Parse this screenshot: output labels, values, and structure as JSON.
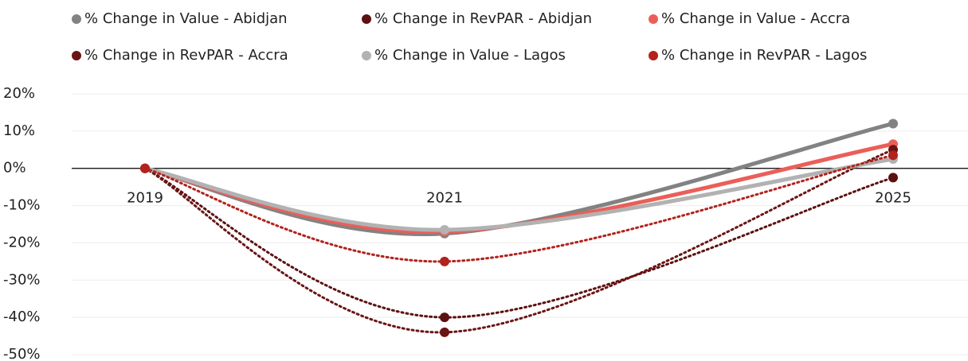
{
  "chart_data": {
    "type": "line",
    "categories": [
      "2019",
      "2021",
      "2025"
    ],
    "series": [
      {
        "name": "% Change in Value - Abidjan",
        "color": "#828282",
        "style": "solid",
        "values": [
          0,
          -17.5,
          12
        ]
      },
      {
        "name": "% Change in RevPAR - Abidjan",
        "color": "#5c1111",
        "style": "dotted",
        "values": [
          0,
          -40,
          -2.5
        ]
      },
      {
        "name": "% Change in Value - Accra",
        "color": "#ea5f59",
        "style": "solid",
        "values": [
          0,
          -17,
          6.5
        ]
      },
      {
        "name": "% Change in RevPAR - Accra",
        "color": "#6b1414",
        "style": "dotted",
        "values": [
          0,
          -44,
          5
        ]
      },
      {
        "name": "% Change in Value - Lagos",
        "color": "#b2b2b2",
        "style": "solid",
        "values": [
          0,
          -16.5,
          2.5
        ]
      },
      {
        "name": "% Change in RevPAR - Lagos",
        "color": "#b3221c",
        "style": "dotted",
        "values": [
          0,
          -25,
          3.5
        ]
      }
    ],
    "ylim": [
      -50,
      20
    ],
    "yticks": [
      {
        "value": 20,
        "label": "20%"
      },
      {
        "value": 10,
        "label": "10%"
      },
      {
        "value": 0,
        "label": "0%"
      },
      {
        "value": -10,
        "label": "-10%"
      },
      {
        "value": -20,
        "label": "-20%"
      },
      {
        "value": -30,
        "label": "-30%"
      },
      {
        "value": -40,
        "label": "-40%"
      },
      {
        "value": -50,
        "label": "-50%"
      }
    ],
    "grid": true,
    "legend": "top",
    "smooth": true
  }
}
